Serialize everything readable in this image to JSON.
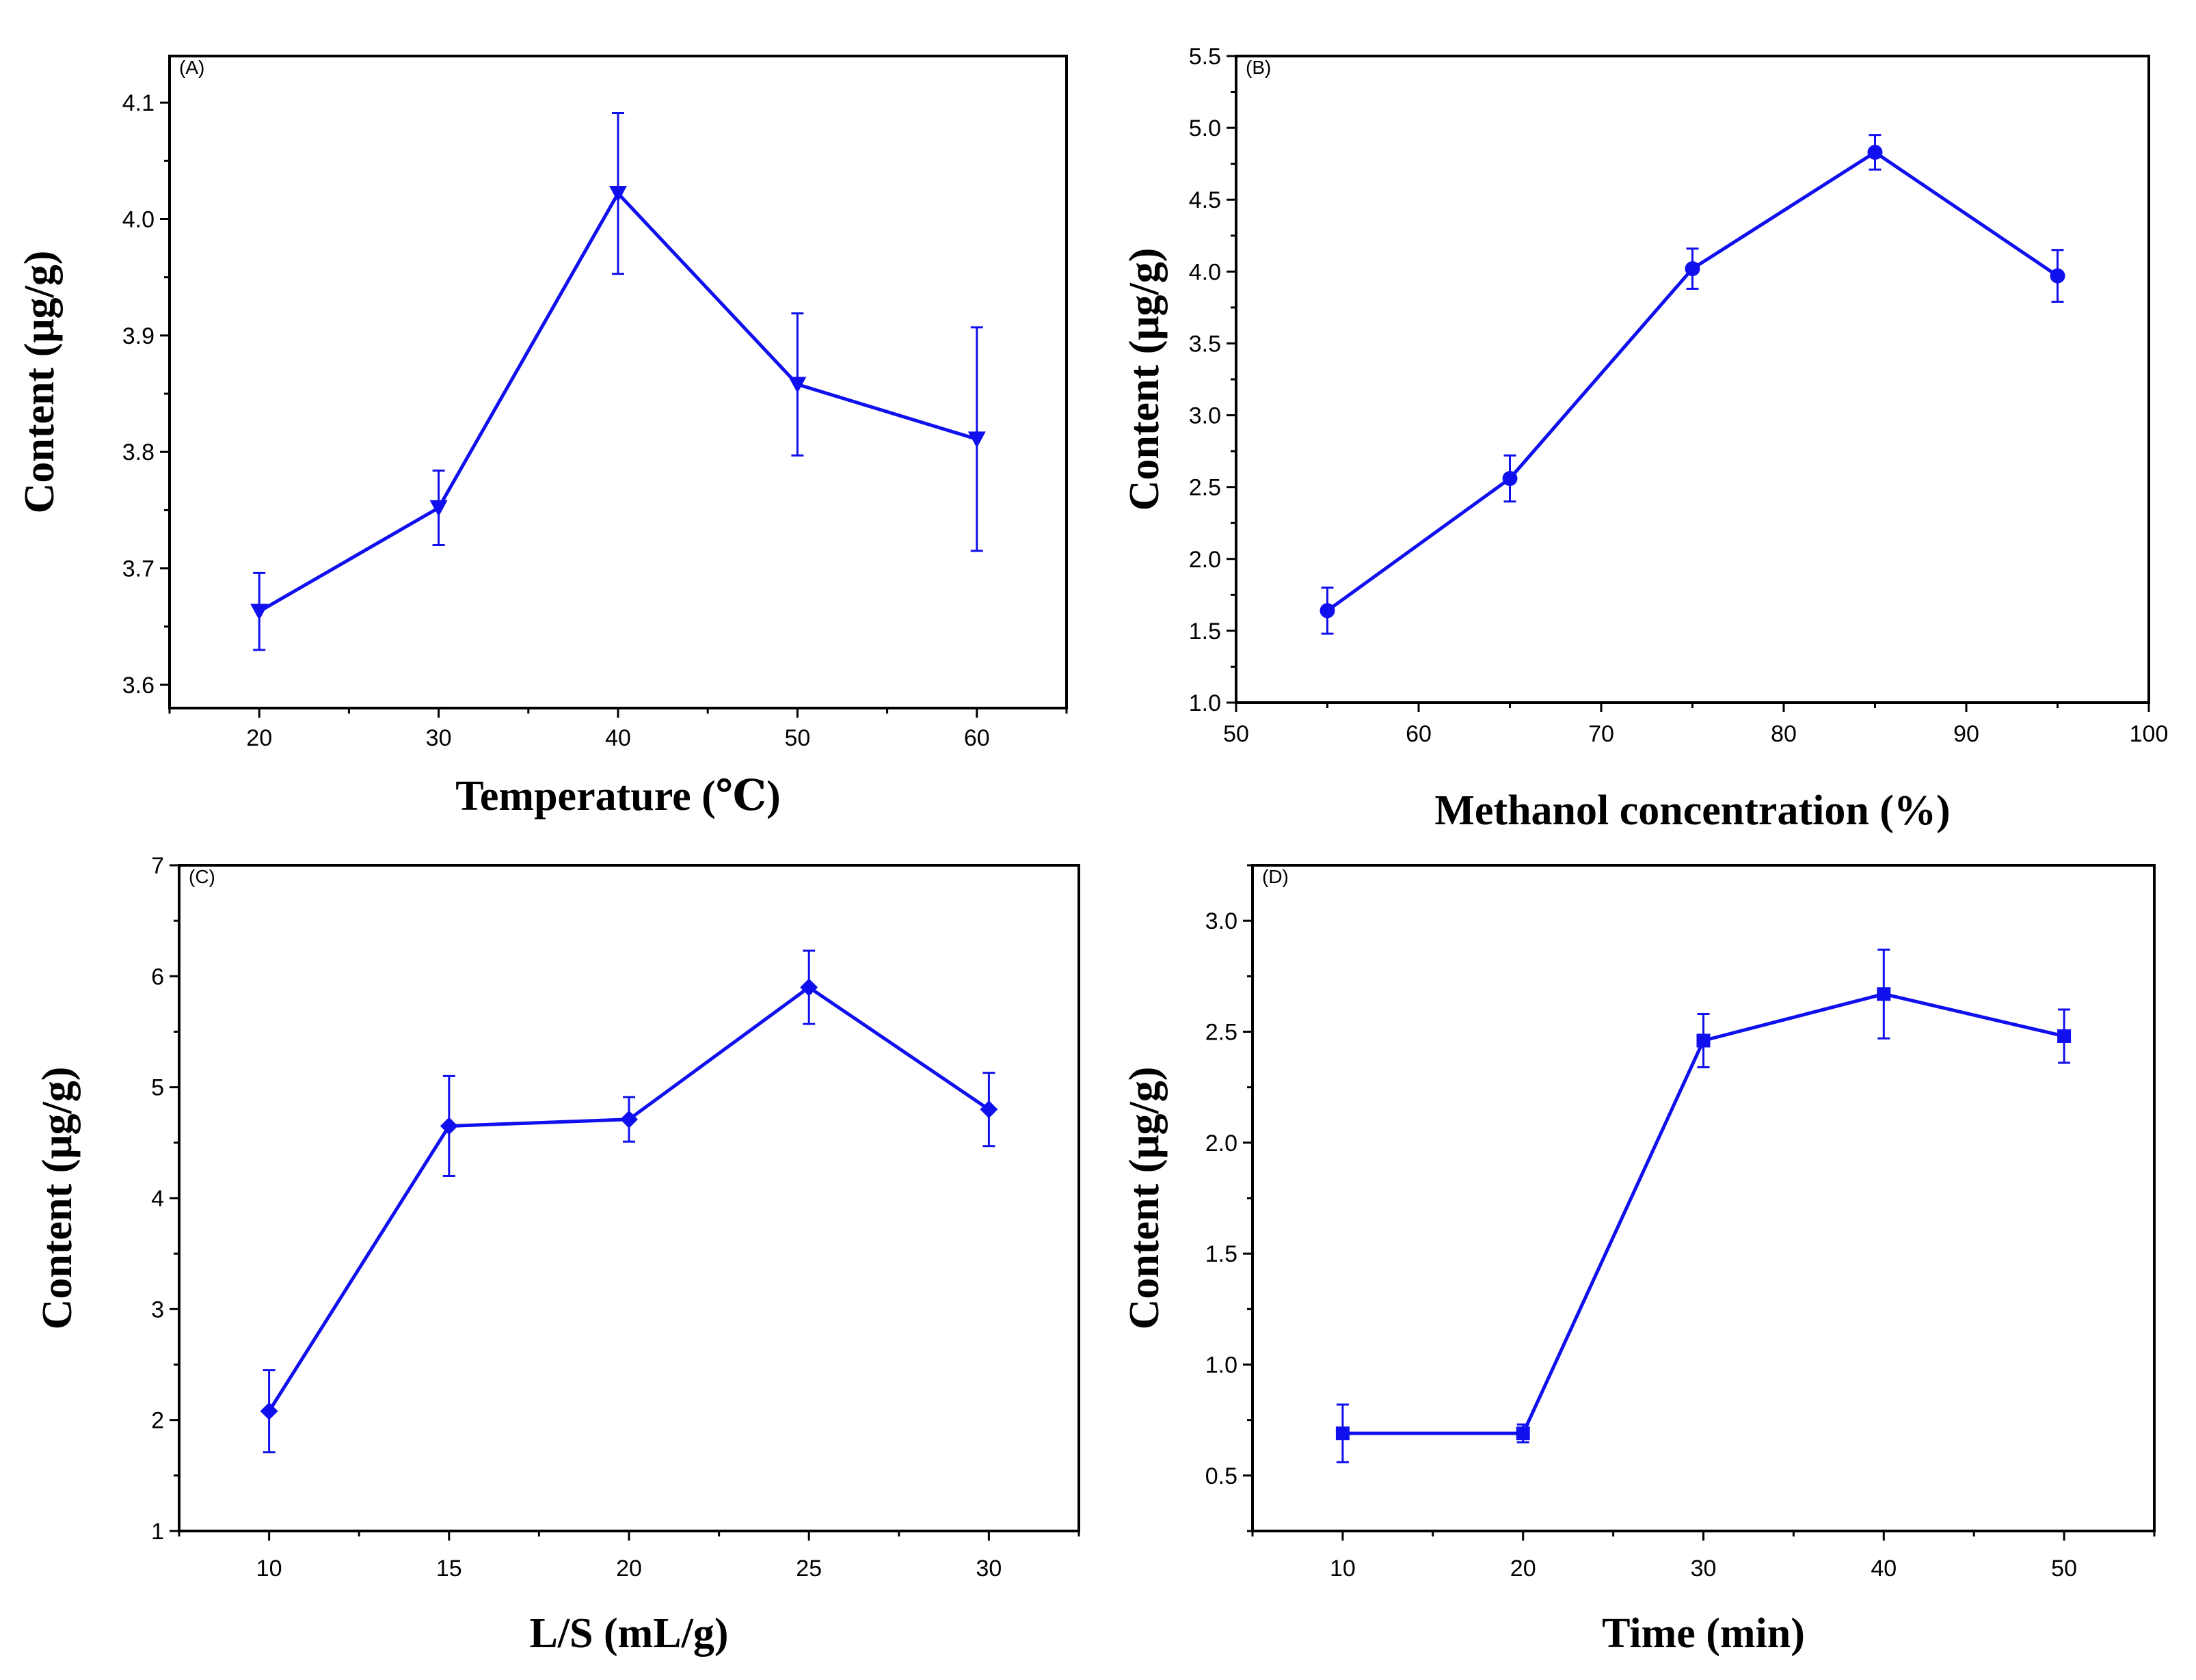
{
  "colors": {
    "series": "#1010ee",
    "axis": "#000000",
    "background": "#ffffff"
  },
  "chart_data": [
    {
      "panel_label": "(A)",
      "type": "line",
      "marker": "triangle-down",
      "xlabel": "Temperature (℃)",
      "ylabel": "Content (μg/g)",
      "xlim": [
        15,
        65
      ],
      "ylim": [
        3.58,
        4.14
      ],
      "xticks": [
        20,
        30,
        40,
        50,
        60
      ],
      "xtick_labels": [
        "20",
        "30",
        "40",
        "50",
        "60"
      ],
      "yticks": [
        3.6,
        3.7,
        3.8,
        3.9,
        4.0,
        4.1
      ],
      "ytick_labels": [
        "3.6",
        "3.7",
        "3.8",
        "3.9",
        "4.0",
        "4.1"
      ],
      "x": [
        20,
        30,
        40,
        50,
        60
      ],
      "y": [
        3.663,
        3.752,
        4.022,
        3.858,
        3.811
      ],
      "error": [
        0.033,
        0.032,
        0.069,
        0.061,
        0.096
      ],
      "grid": false
    },
    {
      "panel_label": "(B)",
      "type": "line",
      "marker": "circle",
      "xlabel": "Methanol concentration (%)",
      "ylabel": "Content (μg/g)",
      "xlim": [
        50,
        100
      ],
      "ylim": [
        1.0,
        5.5
      ],
      "xticks": [
        50,
        60,
        70,
        80,
        90,
        100
      ],
      "xtick_labels": [
        "50",
        "60",
        "70",
        "80",
        "90",
        "100"
      ],
      "yticks": [
        1.0,
        1.5,
        2.0,
        2.5,
        3.0,
        3.5,
        4.0,
        4.5,
        5.0,
        5.5
      ],
      "ytick_labels": [
        "1.0",
        "1.5",
        "2.0",
        "2.5",
        "3.0",
        "3.5",
        "4.0",
        "4.5",
        "5.0",
        "5.5"
      ],
      "x": [
        55,
        65,
        75,
        85,
        95
      ],
      "y": [
        1.64,
        2.56,
        4.02,
        4.83,
        3.97
      ],
      "error": [
        0.16,
        0.16,
        0.14,
        0.12,
        0.18
      ],
      "grid": false
    },
    {
      "panel_label": "(C)",
      "type": "line",
      "marker": "diamond",
      "xlabel": "L/S (mL/g)",
      "ylabel": "Content (μg/g)",
      "xlim": [
        7.5,
        32.5
      ],
      "ylim": [
        1,
        7
      ],
      "xticks": [
        10,
        15,
        20,
        25,
        30
      ],
      "xtick_labels": [
        "10",
        "15",
        "20",
        "25",
        "30"
      ],
      "yticks": [
        1,
        2,
        3,
        4,
        5,
        6,
        7
      ],
      "ytick_labels": [
        "1",
        "2",
        "3",
        "4",
        "5",
        "6",
        "7"
      ],
      "x": [
        10,
        15,
        20,
        25,
        30
      ],
      "y": [
        2.08,
        4.65,
        4.71,
        5.9,
        4.8
      ],
      "error": [
        0.37,
        0.45,
        0.2,
        0.33,
        0.33
      ],
      "grid": false
    },
    {
      "panel_label": "(D)",
      "type": "line",
      "marker": "square",
      "xlabel": "Time (min)",
      "ylabel": "Content (μg/g)",
      "xlim": [
        5,
        55
      ],
      "ylim": [
        0.25,
        3.25
      ],
      "xticks": [
        10,
        20,
        30,
        40,
        50
      ],
      "xtick_labels": [
        "10",
        "20",
        "30",
        "40",
        "50"
      ],
      "yticks": [
        0.5,
        1.0,
        1.5,
        2.0,
        2.5,
        3.0
      ],
      "ytick_labels": [
        "0.5",
        "1.0",
        "1.5",
        "2.0",
        "2.5",
        "3.0"
      ],
      "x": [
        10,
        20,
        30,
        40,
        50
      ],
      "y": [
        0.69,
        0.69,
        2.46,
        2.67,
        2.48
      ],
      "error": [
        0.13,
        0.04,
        0.12,
        0.2,
        0.12
      ],
      "grid": false
    }
  ]
}
